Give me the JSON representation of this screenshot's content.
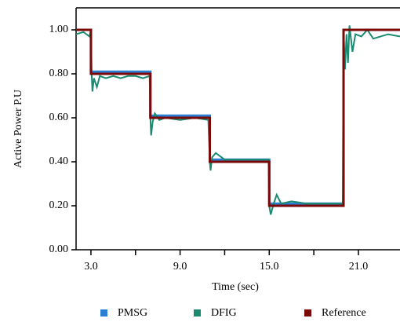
{
  "chart_data": {
    "type": "line",
    "xlabel": "Time (sec)",
    "ylabel": "Active Power P.U",
    "xlim": [
      2,
      23.8
    ],
    "ylim": [
      0,
      1.1
    ],
    "xticks": [
      {
        "value": 3,
        "label": "3.0"
      },
      {
        "value": 9,
        "label": "9.0"
      },
      {
        "value": 15,
        "label": "15.0"
      },
      {
        "value": 21,
        "label": "21.0"
      }
    ],
    "xminorticks": [
      6,
      12,
      18
    ],
    "yticks": [
      {
        "value": 0,
        "label": "0.00"
      },
      {
        "value": 0.2,
        "label": "0.20"
      },
      {
        "value": 0.4,
        "label": "0.40"
      },
      {
        "value": 0.6,
        "label": "0.60"
      },
      {
        "value": 0.8,
        "label": "0.80"
      },
      {
        "value": 1,
        "label": "1.00"
      }
    ],
    "legend": "bottom",
    "series": [
      {
        "name": "PMSG",
        "color": "#2a7fd4",
        "width": 3,
        "x": [
          2,
          3,
          3,
          7,
          7,
          11,
          11,
          15,
          15,
          20,
          20,
          23.8
        ],
        "values": [
          1,
          1,
          0.81,
          0.81,
          0.61,
          0.61,
          0.41,
          0.41,
          0.21,
          0.21,
          1,
          1
        ]
      },
      {
        "name": "DFIG",
        "color": "#1a8a70",
        "width": 2,
        "x": [
          2,
          2.5,
          2.9,
          3.0,
          3.05,
          3.1,
          3.2,
          3.4,
          3.6,
          4,
          4.5,
          5,
          5.5,
          6,
          6.5,
          6.95,
          7.0,
          7.05,
          7.15,
          7.3,
          7.6,
          8,
          9,
          10,
          10.9,
          11.0,
          11.05,
          11.15,
          11.4,
          12,
          13,
          14,
          14.95,
          15.0,
          15.1,
          15.3,
          15.5,
          15.8,
          16.5,
          17.5,
          18.5,
          19.95,
          20.0,
          20.1,
          20.2,
          20.3,
          20.4,
          20.6,
          20.8,
          21.2,
          21.6,
          22,
          23,
          23.8
        ],
        "values": [
          0.98,
          0.99,
          0.97,
          1.0,
          0.8,
          0.72,
          0.78,
          0.74,
          0.79,
          0.78,
          0.79,
          0.78,
          0.79,
          0.79,
          0.78,
          0.79,
          0.6,
          0.52,
          0.58,
          0.62,
          0.59,
          0.6,
          0.59,
          0.6,
          0.59,
          0.4,
          0.36,
          0.42,
          0.44,
          0.41,
          0.41,
          0.41,
          0.41,
          0.2,
          0.16,
          0.21,
          0.25,
          0.21,
          0.22,
          0.21,
          0.21,
          0.21,
          1.0,
          0.82,
          0.98,
          0.85,
          1.02,
          0.9,
          0.98,
          0.97,
          1.0,
          0.96,
          0.98,
          0.97
        ]
      },
      {
        "name": "Reference",
        "color": "#7a0a0a",
        "width": 3,
        "x": [
          2,
          3,
          3,
          7,
          7,
          11,
          11,
          15,
          15,
          20,
          20,
          23.8
        ],
        "values": [
          1,
          1,
          0.8,
          0.8,
          0.6,
          0.6,
          0.4,
          0.4,
          0.2,
          0.2,
          1,
          1
        ]
      }
    ]
  }
}
